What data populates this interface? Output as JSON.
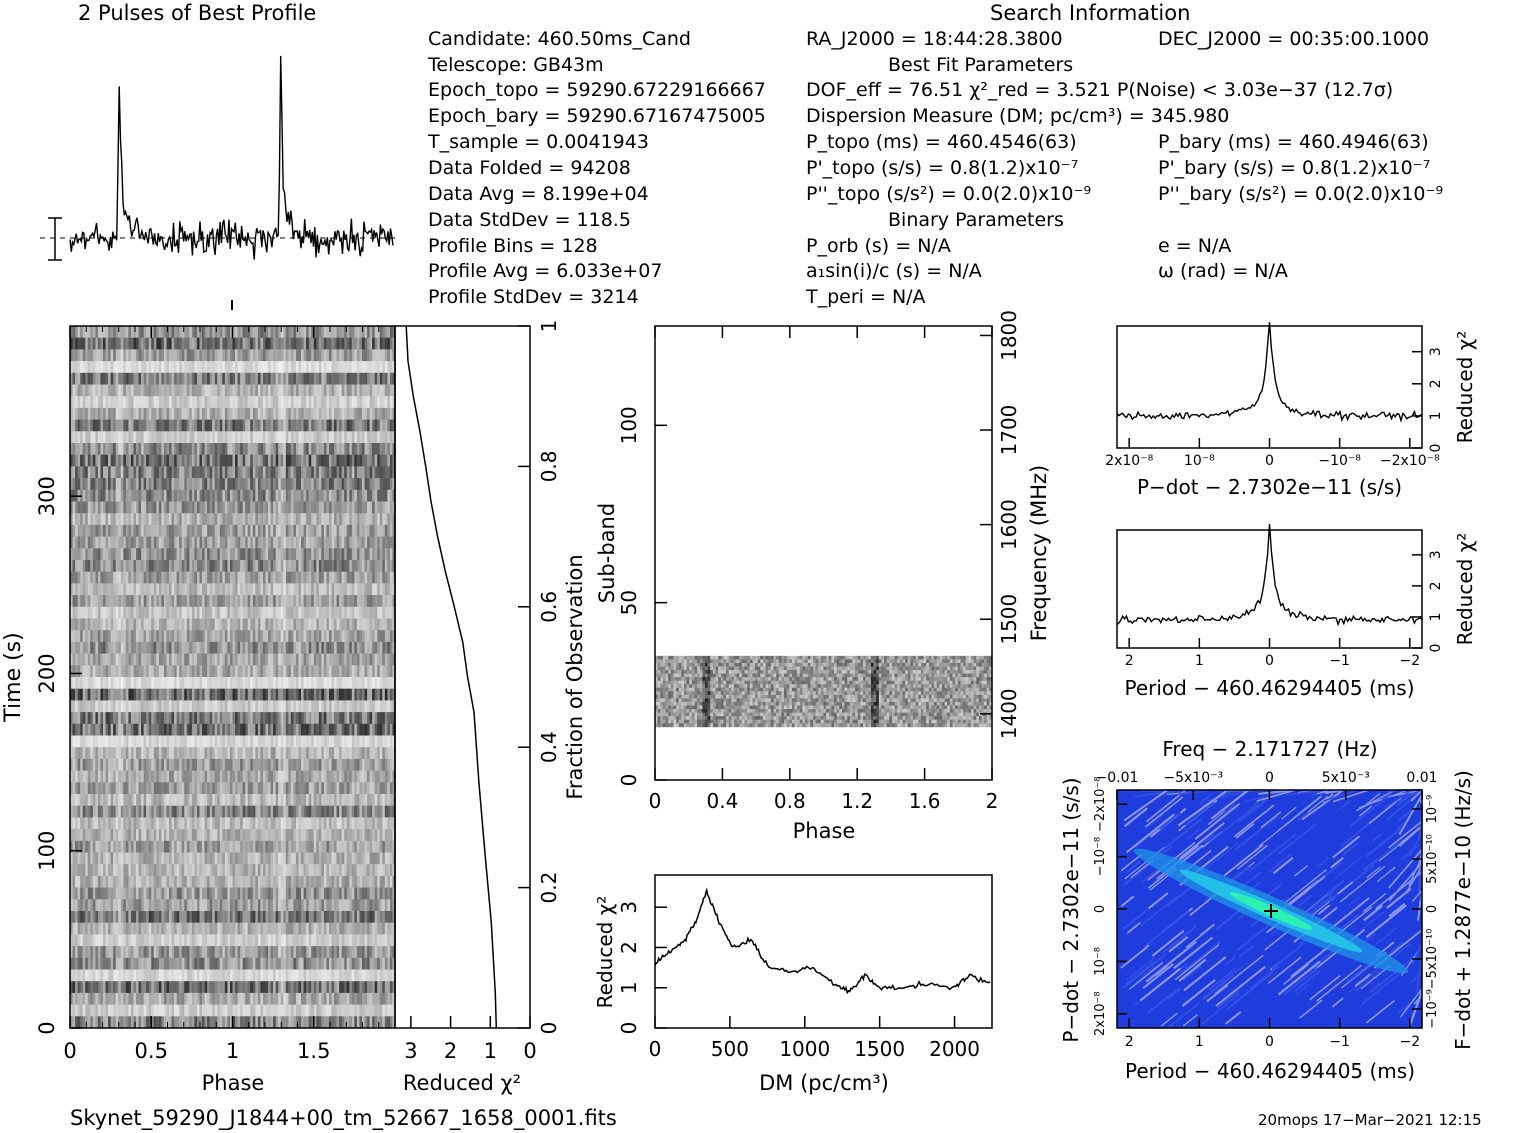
{
  "headers": {
    "profile_title": "2 Pulses of Best Profile",
    "search_info_title": "Search Information"
  },
  "info": {
    "candidate": "Candidate:  460.50ms_Cand",
    "telescope": "Telescope:  GB43m",
    "epoch_topo": "Epoch_topo = 59290.67229166667",
    "epoch_bary": "Epoch_bary = 59290.67167475005",
    "t_sample": "T_sample       =  0.0041943",
    "data_folded": "Data Folded     =  94208",
    "data_avg": "Data Avg          =  8.199e+04",
    "data_stddev": "Data StdDev     =  118.5",
    "profile_bins": "Profile Bins     =  128",
    "profile_avg": "Profile Avg       =  6.033e+07",
    "profile_stddev": "Profile StdDev  =  3214",
    "ra": "RA_J2000 = 18:44:28.3800",
    "dec": "DEC_J2000 = 00:35:00.1000",
    "best_fit_title": "Best Fit Parameters",
    "dof": "DOF_eff = 76.51  χ²_red = 3.521  P(Noise) < 3.03e−37  (12.7σ)",
    "dm": "Dispersion Measure (DM; pc/cm³) = 345.980",
    "p_topo": "P_topo (ms) =  460.4546(63)",
    "p_bary": "P_bary (ms) =  460.4946(63)",
    "pd_topo": "P'_topo (s/s) =  0.8(1.2)x10⁻⁷",
    "pd_bary": "P'_bary (s/s) =  0.8(1.2)x10⁻⁷",
    "pdd_topo": "P''_topo (s/s²) = 0.0(2.0)x10⁻⁹",
    "pdd_bary": "P''_bary (s/s²) = 0.0(2.0)x10⁻⁹",
    "binary_title": "Binary Parameters",
    "p_orb": "P_orb (s) = N/A",
    "e": "e = N/A",
    "a1sini": "a₁sin(i)/c (s) = N/A",
    "omega": "ω (rad) = N/A",
    "t_peri": "T_peri = N/A"
  },
  "footer": {
    "filename": "Skynet_59290_J1844+00_tm_52667_1658_0001.fits",
    "stamp": "20mops 17−Mar−2021 12:15"
  },
  "chart_data": [
    {
      "id": "profile",
      "type": "line",
      "title": "2 Pulses of Best Profile",
      "x": [
        0,
        2
      ],
      "peaks_phase": [
        0.3,
        1.3
      ],
      "note_shape": "sharp pulse with exponential tail; noise baseline"
    },
    {
      "id": "time-phase",
      "type": "heatmap",
      "xlabel": "Phase",
      "ylabel": "Time (s)",
      "xlim": [
        0,
        2
      ],
      "ylim": [
        0,
        396
      ],
      "xticks": [
        "0",
        "0.5",
        "1",
        "1.5"
      ],
      "yticks": [
        "0",
        "100",
        "200",
        "300"
      ],
      "pulse_phase": [
        0.3,
        1.3
      ]
    },
    {
      "id": "time-chi2",
      "type": "line",
      "xlabel": "Reduced χ²",
      "ylabel_right": "Fraction of Observation",
      "xticks": [
        "3",
        "2",
        "1",
        "0"
      ],
      "yticks": [
        "0",
        "0.2",
        "0.4",
        "0.6",
        "0.8",
        "1"
      ],
      "x": [
        3.1,
        3.05,
        2.95,
        2.8,
        2.65,
        2.5,
        2.3,
        2.1,
        1.9,
        1.7,
        1.55,
        1.4,
        1.25,
        1.1,
        1.0,
        0.9,
        0.88
      ],
      "y": [
        1.0,
        0.95,
        0.9,
        0.85,
        0.8,
        0.75,
        0.7,
        0.65,
        0.6,
        0.55,
        0.5,
        0.45,
        0.35,
        0.25,
        0.15,
        0.05,
        0.0
      ]
    },
    {
      "id": "subband-phase",
      "type": "heatmap",
      "xlabel": "Phase",
      "ylabel": "Sub-band",
      "ylabel_right": "Frequency (MHz)",
      "xticks": [
        "0",
        "0.4",
        "0.8",
        "1.2",
        "1.6",
        "2"
      ],
      "yticks": [
        "0",
        "50",
        "100"
      ],
      "yticks_right": [
        "1400",
        "1500",
        "1600",
        "1700",
        "1800"
      ],
      "xlim": [
        0,
        2
      ],
      "ylim": [
        0,
        128
      ],
      "filled_subbands": [
        15,
        35
      ]
    },
    {
      "id": "dm-chi2",
      "type": "line",
      "xlabel": "DM (pc/cm³)",
      "ylabel": "Reduced χ²",
      "xticks": [
        "0",
        "500",
        "1000",
        "1500",
        "2000"
      ],
      "yticks": [
        "0",
        "1",
        "2",
        "3"
      ],
      "xlim": [
        0,
        2250
      ],
      "ylim": [
        0,
        3.8
      ],
      "x": [
        0,
        100,
        200,
        280,
        345,
        420,
        520,
        640,
        760,
        900,
        1050,
        1200,
        1300,
        1400,
        1500,
        1650,
        1800,
        2000,
        2100,
        2250
      ],
      "y": [
        1.6,
        1.9,
        2.2,
        2.7,
        3.4,
        2.7,
        2.0,
        2.2,
        1.5,
        1.4,
        1.5,
        1.1,
        0.9,
        1.3,
        1.0,
        1.0,
        1.1,
        1.0,
        1.3,
        1.1
      ]
    },
    {
      "id": "pdot-chi2",
      "type": "line",
      "xlabel": "P−dot − 2.7302e−11 (s/s)",
      "ylabel_right": "Reduced χ²",
      "xticks": [
        "2x10⁻⁸",
        "10⁻⁸",
        "0",
        "−10⁻⁸",
        "−2x10⁻⁸"
      ],
      "yticks": [
        "0",
        "1",
        "2",
        "3"
      ],
      "peak": 3.5,
      "baseline": 1.0
    },
    {
      "id": "period-chi2",
      "type": "line",
      "xlabel": "Period − 460.46294405 (ms)",
      "ylabel_right": "Reduced χ²",
      "xticks": [
        "2",
        "1",
        "0",
        "−1",
        "−2"
      ],
      "yticks": [
        "0",
        "1",
        "2",
        "3"
      ],
      "peak": 3.5,
      "baseline": 0.9
    },
    {
      "id": "p-pdot",
      "type": "heatmap",
      "title": "Freq − 2.171727 (Hz)",
      "xlabel": "Period − 460.46294405 (ms)",
      "ylabel": "P−dot − 2.7302e−11 (s/s)",
      "ylabel_right": "F−dot + 1.2877e−10 (Hz/s)",
      "xticks": [
        "2",
        "1",
        "0",
        "−1",
        "−2"
      ],
      "xticks_top": [
        "−0.01",
        "−5x10⁻³",
        "0",
        "5x10⁻³",
        "0.01"
      ],
      "yticks_left": [
        "2x10⁻⁸",
        "10⁻⁸",
        "0",
        "−10⁻⁸",
        "−2x10⁻⁸"
      ],
      "yticks_right": [
        "−10⁻⁹",
        "−5x10⁻¹⁰",
        "0",
        "5x10⁻¹⁰",
        "10⁻⁹"
      ]
    }
  ]
}
